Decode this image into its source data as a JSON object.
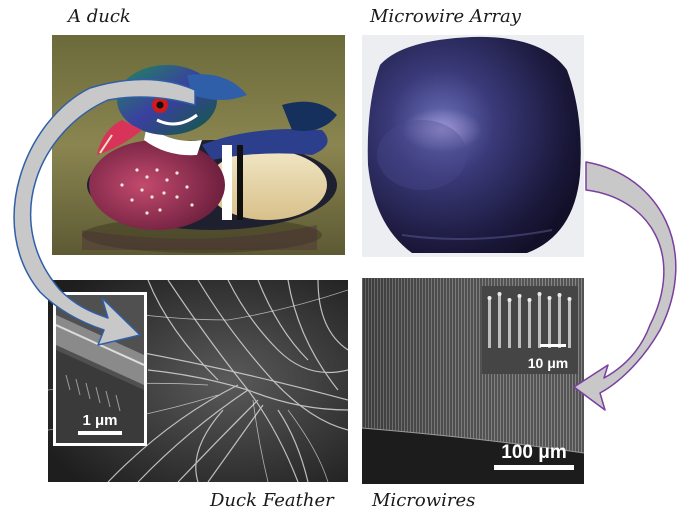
{
  "labels": {
    "duck": "A duck",
    "array": "Microwire Array",
    "feather": "Duck Feather",
    "wires": "Microwires"
  },
  "scale_bars": {
    "feather_inset": "1 μm",
    "wires_inset": "10 μm",
    "wires_main": "100 μm"
  },
  "colors": {
    "arrow_left_outline": "#2f5fa8",
    "arrow_right_outline": "#7a3fa0",
    "arrow_fill": "#c8c8c8"
  }
}
